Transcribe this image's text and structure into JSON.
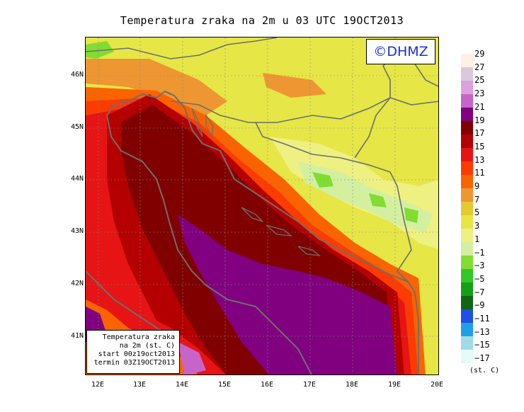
{
  "title": "Temperatura zraka na 2m u 03 UTC 19OCT2013",
  "logo": "©DHMZ",
  "infobox": {
    "line1": "Temperatura zraka",
    "line2": "na 2m (st. C)",
    "line3": "start 00z19oct2013",
    "line4": "termin 03Z19OCT2013"
  },
  "axes": {
    "x_ticks": [
      "12E",
      "13E",
      "14E",
      "15E",
      "16E",
      "17E",
      "18E",
      "19E",
      "20E"
    ],
    "y_ticks": [
      "46N",
      "45N",
      "44N",
      "43N",
      "42N",
      "41N"
    ]
  },
  "legend": {
    "labels": [
      "29",
      "27",
      "25",
      "23",
      "21",
      "19",
      "17",
      "15",
      "13",
      "11",
      "9",
      "7",
      "5",
      "3",
      "1",
      "−1",
      "−3",
      "−5",
      "−7",
      "−9",
      "−11",
      "−13",
      "−15",
      "−17"
    ],
    "colors": [
      "#fff0e6",
      "#dcc8dc",
      "#dca0dc",
      "#c864c8",
      "#800080",
      "#800000",
      "#b40000",
      "#e61414",
      "#fa3c00",
      "#fa6400",
      "#ee9632",
      "#e6c832",
      "#e6e646",
      "#eef082",
      "#d2f0a0",
      "#82dc32",
      "#32c828",
      "#14a014",
      "#146414",
      "#1e50e6",
      "#1ea0e6",
      "#a0dce6",
      "#e6fafa"
    ],
    "unit": "(st. C)"
  }
}
